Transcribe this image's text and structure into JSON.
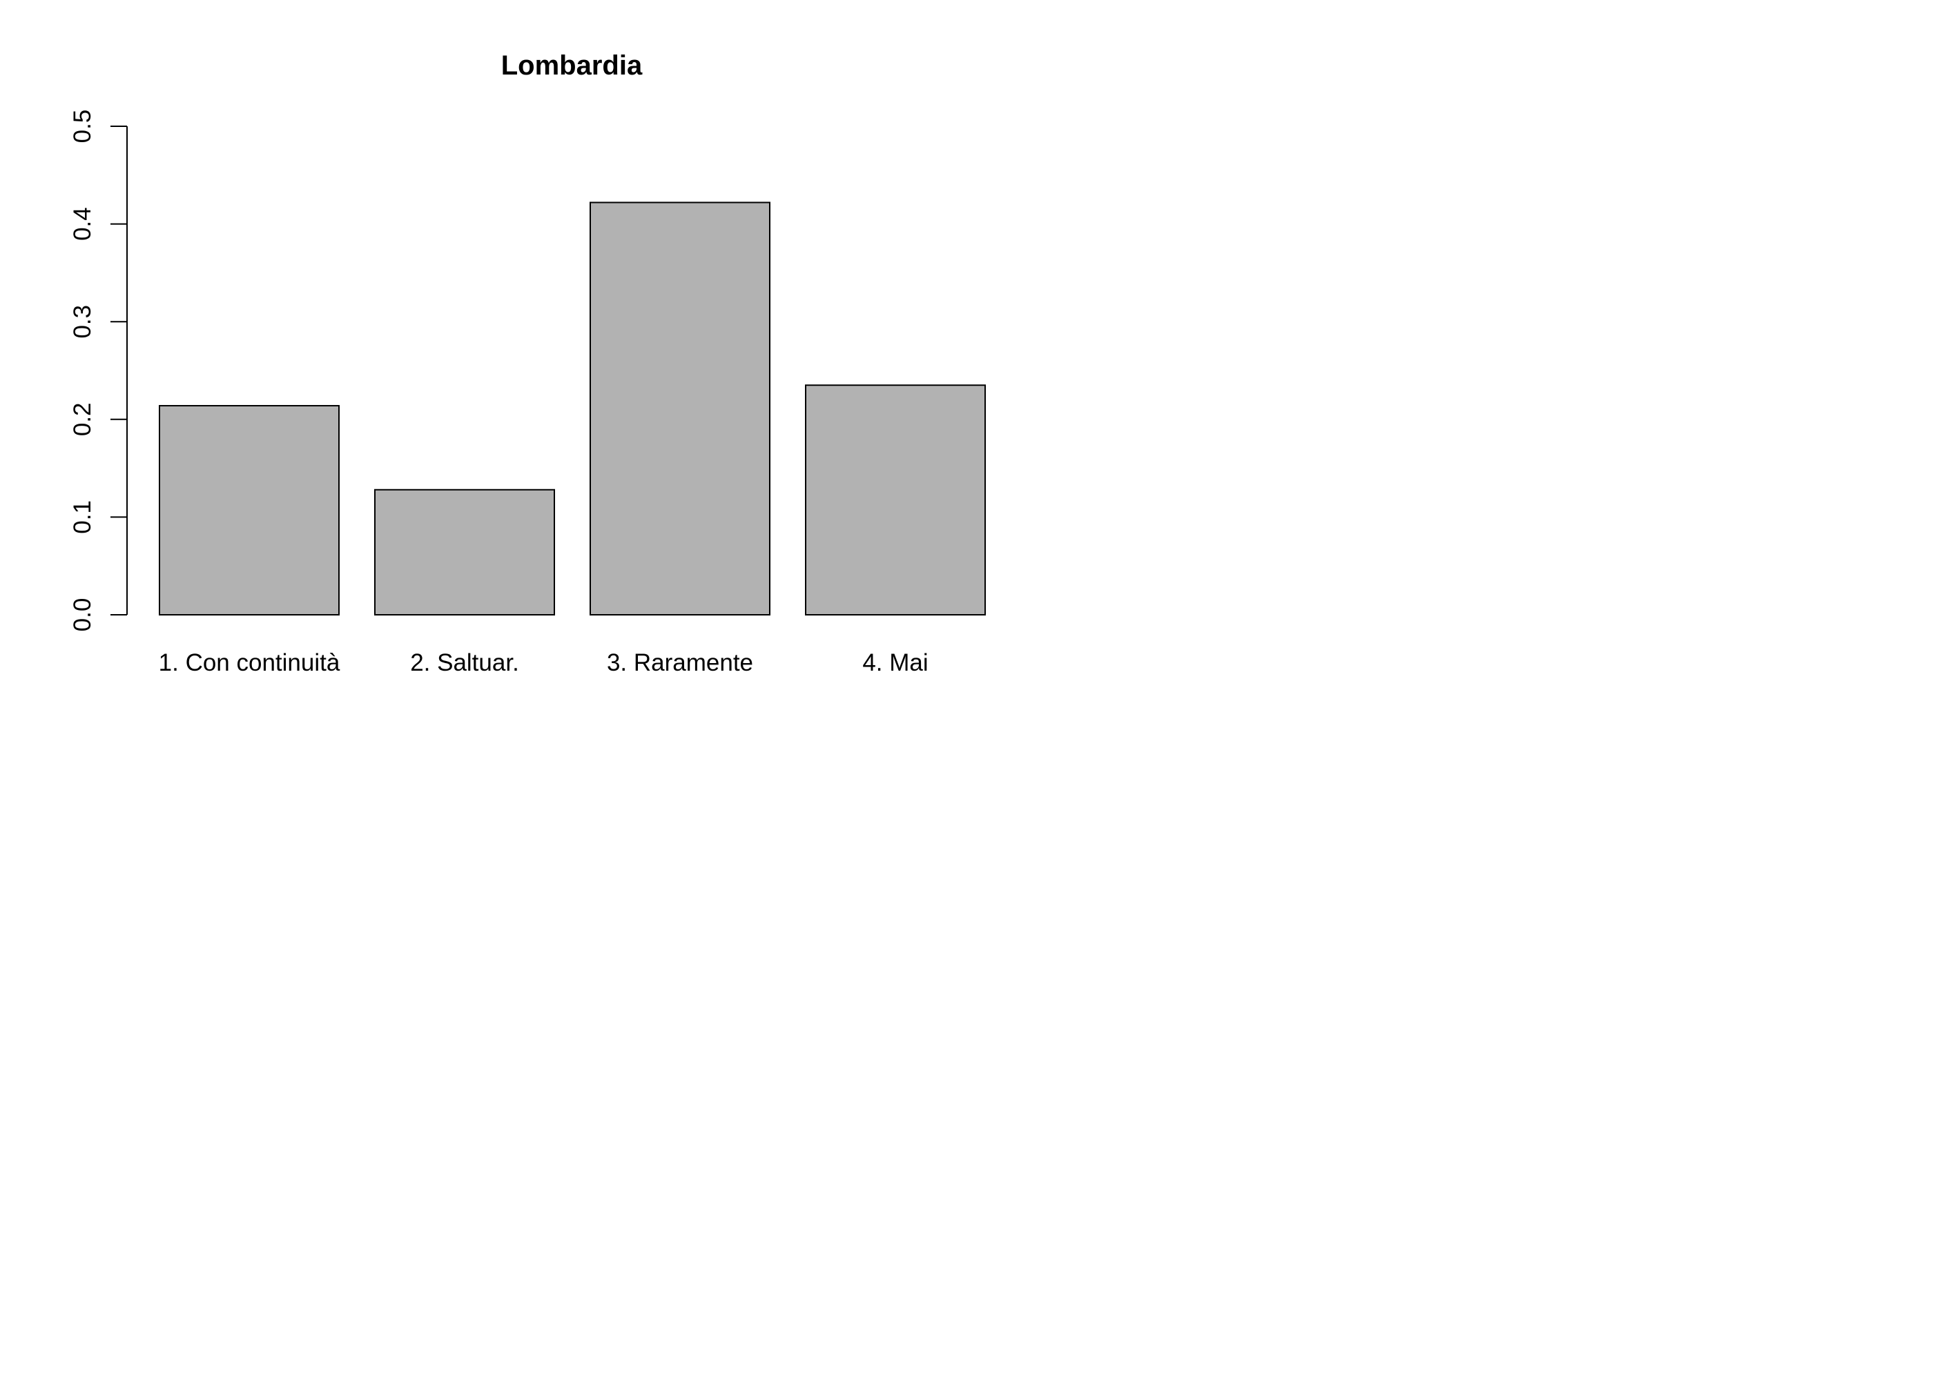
{
  "chart_data": {
    "type": "bar",
    "title": "Lombardia",
    "xlabel": "",
    "ylabel": "",
    "categories": [
      "1. Con continuità",
      "2. Saltuar.",
      "3. Raramente",
      "4. Mai"
    ],
    "values": [
      0.214,
      0.128,
      0.422,
      0.235
    ],
    "ylim": [
      0,
      0.5
    ],
    "yticks": [
      "0.0",
      "0.1",
      "0.2",
      "0.3",
      "0.4",
      "0.5"
    ],
    "grid": false,
    "bar_color": "#b2b2b2",
    "border_color": "#000000"
  }
}
